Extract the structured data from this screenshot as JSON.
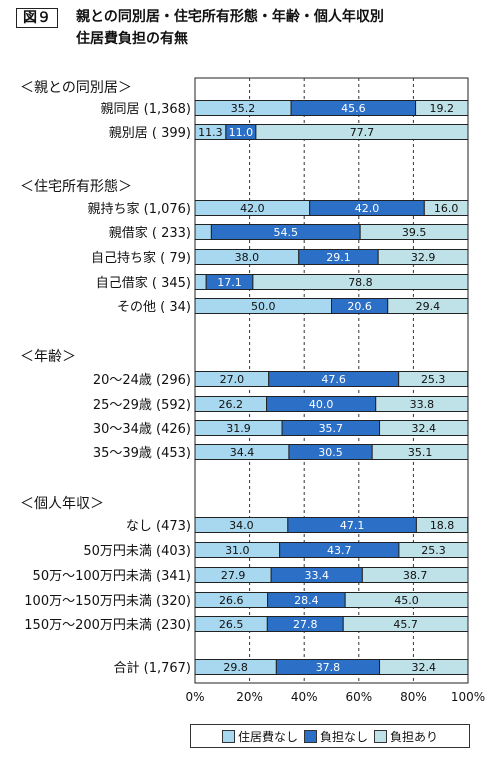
{
  "figure_tag": "図９",
  "title_line1": "親との同別居・住宅所有形態・年齢・個人年収別",
  "title_line2": "住居費負担の有無",
  "colors": {
    "none": "#a8d8ef",
    "no_burden": "#2b6fc7",
    "burden": "#bfe1e8"
  },
  "legend": {
    "none": "住居費なし",
    "no_burden": "負担なし",
    "burden": "負担あり"
  },
  "chart_data": {
    "type": "bar",
    "orientation": "horizontal",
    "stacked": true,
    "xlim": [
      0,
      100
    ],
    "x_ticks": [
      "0%",
      "20%",
      "40%",
      "60%",
      "80%",
      "100%"
    ],
    "series": [
      {
        "name": "住居費なし",
        "color": "#a8d8ef"
      },
      {
        "name": "負担なし",
        "color": "#2b6fc7"
      },
      {
        "name": "負担あり",
        "color": "#bfe1e8"
      }
    ],
    "groups": [
      {
        "heading": "＜親との同別居＞",
        "rows": [
          {
            "label": "親同居 (1,368)",
            "values": [
              35.2,
              45.6,
              19.2
            ]
          },
          {
            "label": "親別居 (  399)",
            "values": [
              11.3,
              11.0,
              77.7
            ]
          }
        ]
      },
      {
        "heading": "＜住宅所有形態＞",
        "rows": [
          {
            "label": "親持ち家 (1,076)",
            "values": [
              42.0,
              42.0,
              16.0
            ]
          },
          {
            "label": "親借家 (  233)",
            "values": [
              6.0,
              54.5,
              39.5
            ]
          },
          {
            "label": "自己持ち家 (  79)",
            "values": [
              38.0,
              29.1,
              32.9
            ]
          },
          {
            "label": "自己借家 (  345)",
            "values": [
              4.1,
              17.1,
              78.8
            ]
          },
          {
            "label": "その他 (  34)",
            "values": [
              50.0,
              20.6,
              29.4
            ]
          }
        ]
      },
      {
        "heading": "＜年齢＞",
        "rows": [
          {
            "label": "20～24歳 (296)",
            "values": [
              27.0,
              47.6,
              25.3
            ]
          },
          {
            "label": "25～29歳 (592)",
            "values": [
              26.2,
              40.0,
              33.8
            ]
          },
          {
            "label": "30～34歳 (426)",
            "values": [
              31.9,
              35.7,
              32.4
            ]
          },
          {
            "label": "35～39歳 (453)",
            "values": [
              34.4,
              30.5,
              35.1
            ]
          }
        ]
      },
      {
        "heading": "＜個人年収＞",
        "rows": [
          {
            "label": "なし (473)",
            "values": [
              34.0,
              47.1,
              18.8
            ]
          },
          {
            "label": "50万円未満 (403)",
            "values": [
              31.0,
              43.7,
              25.3
            ]
          },
          {
            "label": "50万～100万円未満 (341)",
            "values": [
              27.9,
              33.4,
              38.7
            ]
          },
          {
            "label": "100万～150万円未満 (320)",
            "values": [
              26.6,
              28.4,
              45.0
            ]
          },
          {
            "label": "150万～200万円未満 (230)",
            "values": [
              26.5,
              27.8,
              45.7
            ]
          }
        ]
      },
      {
        "heading": "",
        "rows": [
          {
            "label": "合計 (1,767)",
            "values": [
              29.8,
              37.8,
              32.4
            ]
          }
        ]
      }
    ],
    "hidden_value_labels": [
      {
        "group": 1,
        "row": 1,
        "series": 0
      },
      {
        "group": 1,
        "row": 3,
        "series": 0
      }
    ]
  }
}
